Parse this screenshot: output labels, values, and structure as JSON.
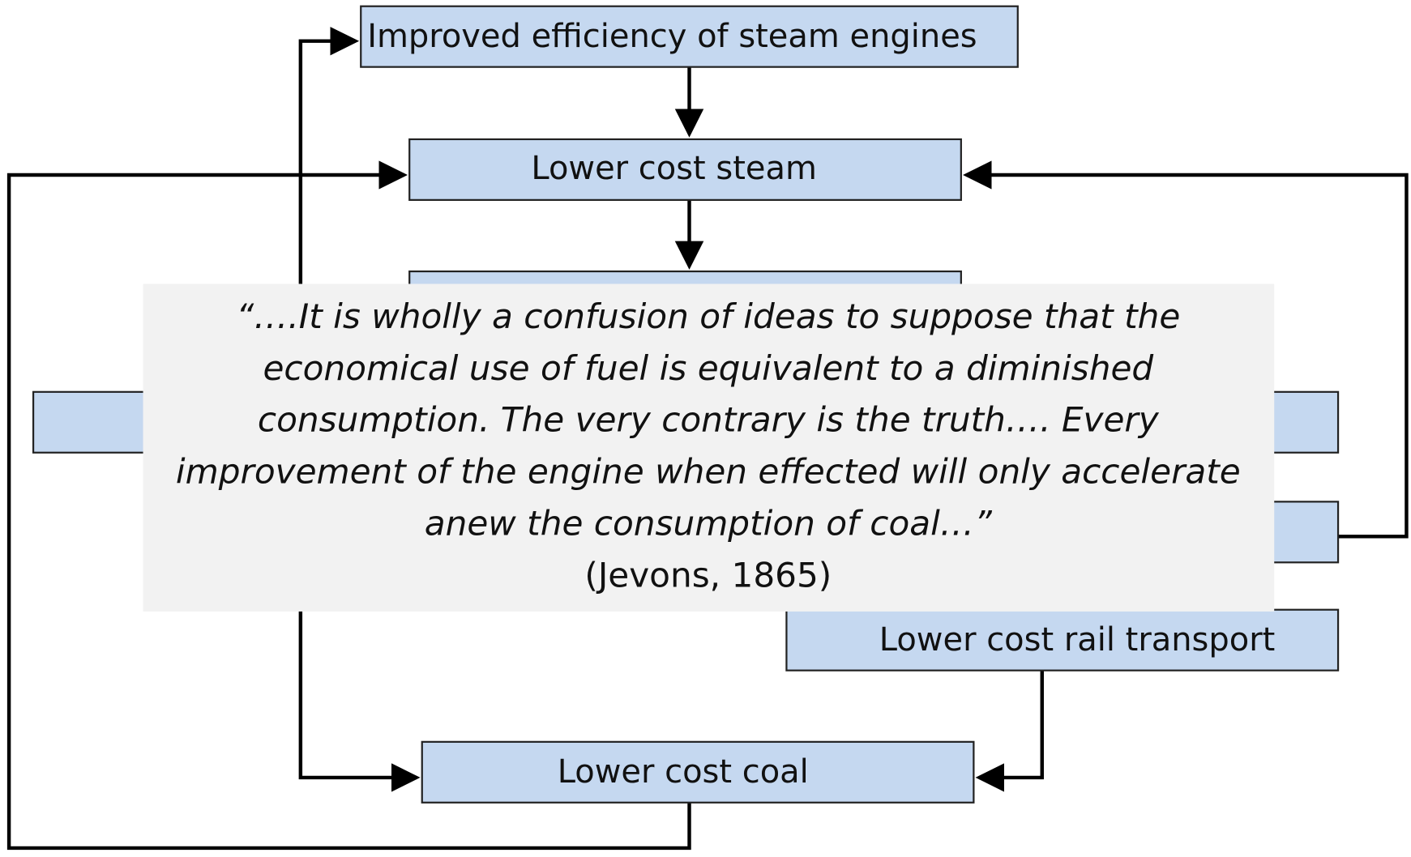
{
  "nodes": [
    {
      "label": "Improved efficiency of steam engines"
    },
    {
      "label": "Lower cost steam"
    },
    {
      "label": "Lower cost rail transport"
    },
    {
      "label": "Lower cost coal"
    }
  ],
  "quote": {
    "lines": [
      "“….It is wholly a confusion of ideas to suppose that the",
      "economical use of fuel is equivalent to a diminished",
      "consumption. The very contrary is the truth…. Every",
      "improvement of the engine when effected will only accelerate",
      "anew the consumption of coal…”"
    ],
    "citation": "(Jevons, 1865)"
  }
}
